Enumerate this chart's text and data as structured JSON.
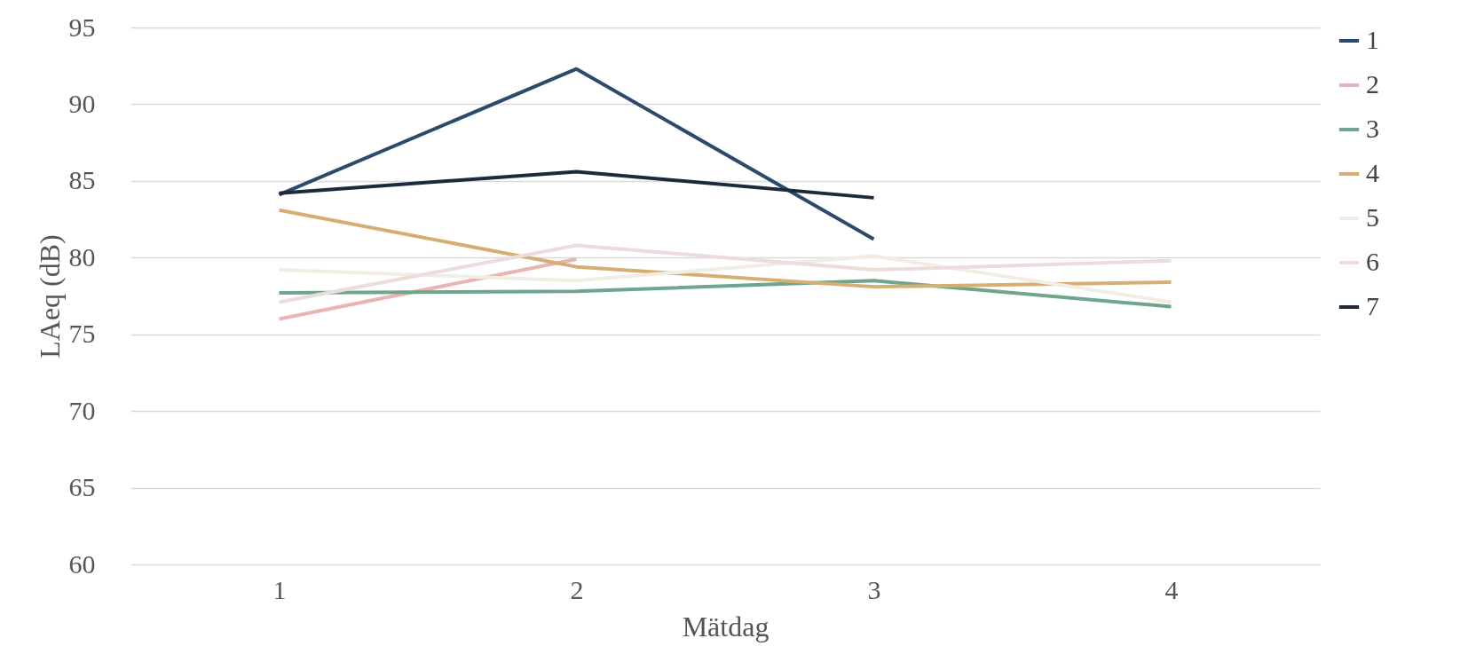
{
  "chart_data": {
    "type": "line",
    "xlabel": "Mätdag",
    "ylabel": "LAeq (dB)",
    "categories": [
      "1",
      "2",
      "3",
      "4"
    ],
    "ylim": [
      60,
      95
    ],
    "yticks": [
      60,
      65,
      70,
      75,
      80,
      85,
      90,
      95
    ],
    "grid": "y",
    "legend": "right",
    "marker": "none",
    "line_style": "solid",
    "series": [
      {
        "name": "1",
        "color": "#2c4a6b",
        "values": [
          84.1,
          92.3,
          81.2,
          null
        ]
      },
      {
        "name": "2",
        "color": "#e8b4b4",
        "values": [
          76.0,
          79.9,
          null,
          null
        ]
      },
      {
        "name": "3",
        "color": "#6fa58a",
        "values": [
          77.7,
          77.8,
          78.5,
          76.8
        ]
      },
      {
        "name": "4",
        "color": "#d6ae74",
        "values": [
          83.1,
          79.4,
          78.1,
          78.4
        ]
      },
      {
        "name": "5",
        "color": "#f0ede2",
        "values": [
          79.2,
          78.5,
          80.1,
          77.1
        ]
      },
      {
        "name": "6",
        "color": "#ecdcdc",
        "values": [
          77.1,
          80.8,
          79.2,
          79.8
        ]
      },
      {
        "name": "7",
        "color": "#1c2b3c",
        "values": [
          84.2,
          85.6,
          83.9,
          null
        ]
      }
    ]
  }
}
